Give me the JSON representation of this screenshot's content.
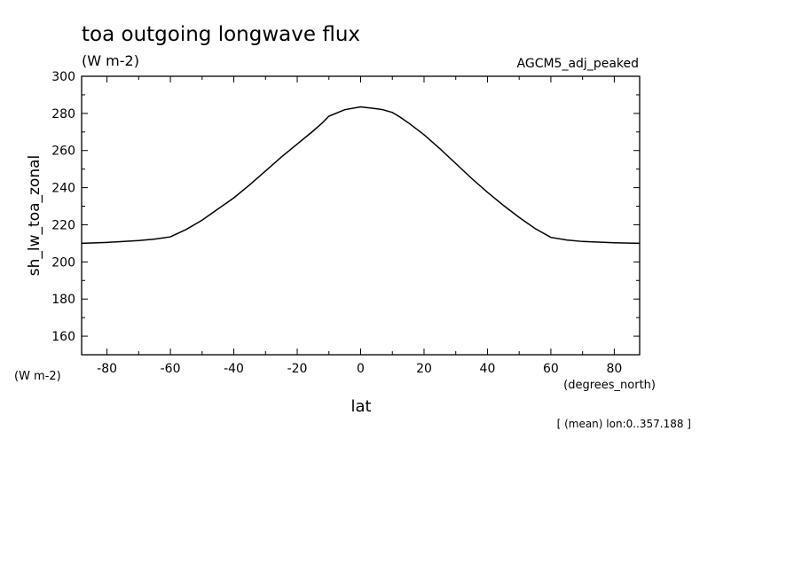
{
  "chart_data": {
    "type": "line",
    "title": "toa outgoing longwave flux",
    "units": "(W m-2)",
    "dataset": "AGCM5_adj_peaked",
    "ylabel": "sh_lw_toa_zonal",
    "yunits": "(W m-2)",
    "xlabel": "lat",
    "xunits": "(degrees_north)",
    "footnote": "[ (mean) lon:0..357.188 ]",
    "xlim": [
      -88,
      88
    ],
    "ylim": [
      150,
      300
    ],
    "xticks": [
      -80,
      -60,
      -40,
      -20,
      0,
      20,
      40,
      60,
      80
    ],
    "xtick_labels": [
      "-80",
      "-60",
      "-40",
      "-20",
      "0",
      "20",
      "40",
      "60",
      "80"
    ],
    "yticks": [
      160,
      180,
      200,
      220,
      240,
      260,
      280,
      300
    ],
    "ytick_labels": [
      "160",
      "180",
      "200",
      "220",
      "240",
      "260",
      "280",
      "300"
    ],
    "grid": false,
    "series": [
      {
        "x": [
          -88,
          -80,
          -70,
          -65,
          -60,
          -55,
          -50,
          -45,
          -40,
          -35,
          -30,
          -25,
          -20,
          -15,
          -12,
          -10,
          -5,
          0,
          5,
          7,
          10,
          12,
          15,
          20,
          25,
          30,
          35,
          40,
          45,
          50,
          55,
          60,
          65,
          70,
          80,
          88
        ],
        "values": [
          210,
          210.5,
          211.5,
          212.3,
          213.5,
          217.5,
          222.5,
          228.5,
          234.5,
          241.5,
          249.0,
          256.5,
          263.5,
          270.5,
          275.0,
          278.5,
          282.0,
          283.5,
          282.5,
          282.0,
          280.5,
          278.5,
          275.0,
          268.5,
          261.0,
          253.0,
          245.0,
          237.5,
          230.5,
          224.0,
          218.0,
          213.2,
          211.8,
          211.0,
          210.3,
          210
        ]
      }
    ]
  }
}
